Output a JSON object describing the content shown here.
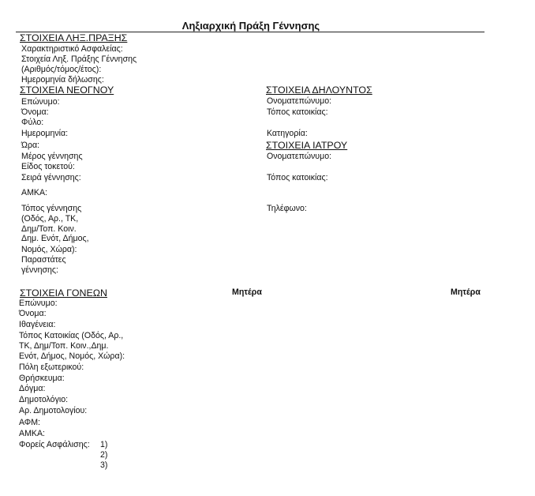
{
  "title": "Ληξιαρχική Πράξη Γέννησης",
  "act": {
    "heading": "ΣΤΟΙΧΕΙΑ ΛΗΞ.ΠΡΑΞΗΣ",
    "fields": [
      "Χαρακτηριστικό Ασφαλείας:",
      "Στοιχεία Ληξ. Πράξης Γέννησης",
      "(Αριθμός/τόμος/έτος):",
      "Ημερομηνία  δήλωσης:"
    ]
  },
  "newborn": {
    "heading": "ΣΤΟΙΧΕΙΑ ΝΕΟΓΝΟΥ",
    "fields": [
      "Επώνυμο:",
      "Όνομα:",
      "Φύλο:",
      "Ημερομηνία:",
      "Ώρα:",
      "Μέρος γέννησης",
      "Είδος τοκετού:",
      "Σειρά γέννησης:",
      "ΑΜΚΑ:",
      "Τόπος γέννησης",
      "(Οδός, Αρ., ΤΚ,",
      "Δημ/Τοπ. Κοιν.",
      "Δημ. Ενότ, Δήμος,",
      "Νομός, Χώρα):",
      "Παραστάτες",
      "γέννησης:"
    ]
  },
  "declarant": {
    "heading": "ΣΤΟΙΧΕΙΑ ΔΗΛΟΥΝΤΟΣ",
    "fields": [
      "Ονοματεπώνυμο:",
      "Τόπος κατοικίας:",
      "Κατηγορία:"
    ]
  },
  "doctor": {
    "heading": "ΣΤΟΙΧΕΙΑ ΙΑΤΡΟΥ",
    "fields": [
      "Ονοματεπώνυμο:",
      "Τόπος κατοικίας:",
      "Τηλέφωνο:"
    ]
  },
  "parents": {
    "heading": "ΣΤΟΙΧΕΙΑ ΓΟΝΕΩΝ",
    "columns": [
      "Μητέρα",
      "Μητέρα"
    ],
    "fields": [
      "Επώνυμο:",
      "Όνομα:",
      "Ιθαγένεια:",
      "Τόπος Κατοικίας (Οδός, Αρ.,",
      "ΤΚ, Δημ/Τοπ. Κοιν.,Δημ.",
      "Ενότ, Δήμος, Νομός, Χώρα):",
      "Πόλη εξωτερικού:",
      "Θρήσκευμα:",
      "Δόγμα:",
      "Δημοτολόγιο:",
      "Αρ. Δημοτολογίου:",
      "ΑΦΜ:",
      "ΑΜΚΑ:",
      "Φορείς Ασφάλισης:"
    ],
    "insurance_numbers": [
      "1)",
      "2)",
      "3)"
    ]
  }
}
